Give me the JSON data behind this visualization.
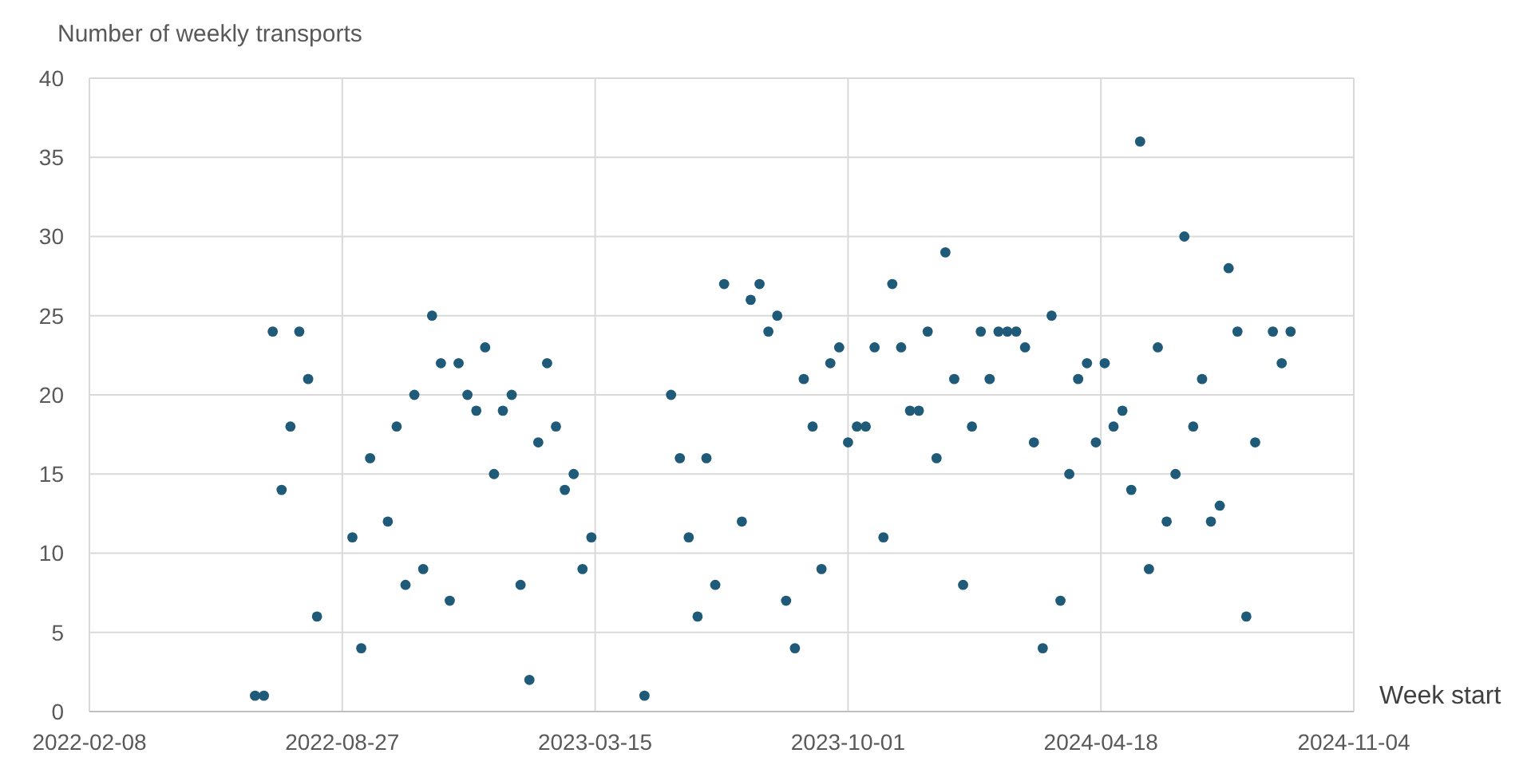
{
  "chart_data": {
    "type": "scatter",
    "xlabel": "Week start",
    "ylabel": "Number of weekly transports",
    "x": [
      "2022-06-19",
      "2022-06-26",
      "2022-07-03",
      "2022-07-10",
      "2022-07-17",
      "2022-07-24",
      "2022-07-31",
      "2022-08-07",
      "2022-09-04",
      "2022-09-11",
      "2022-09-18",
      "2022-10-02",
      "2022-10-09",
      "2022-10-16",
      "2022-10-23",
      "2022-10-30",
      "2022-11-06",
      "2022-11-13",
      "2022-11-20",
      "2022-11-27",
      "2022-12-04",
      "2022-12-11",
      "2022-12-18",
      "2022-12-25",
      "2023-01-01",
      "2023-01-08",
      "2023-01-15",
      "2023-01-22",
      "2023-01-29",
      "2023-02-05",
      "2023-02-12",
      "2023-02-19",
      "2023-02-26",
      "2023-03-05",
      "2023-03-12",
      "2023-04-23",
      "2023-05-14",
      "2023-05-21",
      "2023-05-28",
      "2023-06-04",
      "2023-06-11",
      "2023-06-18",
      "2023-06-25",
      "2023-07-09",
      "2023-07-16",
      "2023-07-23",
      "2023-07-30",
      "2023-08-06",
      "2023-08-13",
      "2023-08-20",
      "2023-08-27",
      "2023-09-03",
      "2023-09-10",
      "2023-09-17",
      "2023-09-24",
      "2023-10-01",
      "2023-10-08",
      "2023-10-15",
      "2023-10-22",
      "2023-10-29",
      "2023-11-05",
      "2023-11-12",
      "2023-11-19",
      "2023-11-26",
      "2023-12-03",
      "2023-12-10",
      "2023-12-17",
      "2023-12-24",
      "2023-12-31",
      "2024-01-07",
      "2024-01-14",
      "2024-01-21",
      "2024-01-28",
      "2024-02-04",
      "2024-02-11",
      "2024-02-18",
      "2024-02-25",
      "2024-03-03",
      "2024-03-10",
      "2024-03-17",
      "2024-03-24",
      "2024-03-31",
      "2024-04-07",
      "2024-04-14",
      "2024-04-21",
      "2024-04-28",
      "2024-05-05",
      "2024-05-12",
      "2024-05-19",
      "2024-05-26",
      "2024-06-02",
      "2024-06-09",
      "2024-06-16",
      "2024-06-23",
      "2024-06-30",
      "2024-07-07",
      "2024-07-14",
      "2024-07-21",
      "2024-07-28",
      "2024-08-04",
      "2024-08-11",
      "2024-08-18",
      "2024-09-01",
      "2024-09-08",
      "2024-09-15"
    ],
    "series": [
      {
        "color": "#1f5b78",
        "values": [
          1,
          1,
          24,
          14,
          18,
          24,
          21,
          6,
          11,
          4,
          16,
          12,
          18,
          8,
          20,
          9,
          25,
          22,
          7,
          22,
          20,
          19,
          23,
          15,
          19,
          20,
          8,
          2,
          17,
          22,
          18,
          14,
          15,
          9,
          11,
          1,
          20,
          16,
          11,
          6,
          16,
          8,
          27,
          12,
          26,
          27,
          24,
          25,
          7,
          4,
          21,
          18,
          9,
          22,
          23,
          17,
          18,
          18,
          23,
          11,
          27,
          23,
          19,
          19,
          24,
          16,
          29,
          21,
          8,
          18,
          24,
          21,
          24,
          24,
          24,
          23,
          17,
          4,
          25,
          7,
          15,
          21,
          22,
          17,
          22,
          18,
          19,
          14,
          36,
          9,
          23,
          12,
          15,
          30,
          18,
          21,
          12,
          13,
          28,
          24,
          6,
          17,
          24,
          22,
          24
        ]
      }
    ],
    "xlim": [
      "2022-02-08",
      "2024-11-04"
    ],
    "xticks": [
      "2022-02-08",
      "2022-08-27",
      "2023-03-15",
      "2023-10-01",
      "2024-04-18",
      "2024-11-04"
    ],
    "ylim": [
      0,
      40
    ],
    "yticks": [
      0,
      5,
      10,
      15,
      20,
      25,
      30,
      35,
      40
    ],
    "grid": true,
    "marker": "circle"
  }
}
